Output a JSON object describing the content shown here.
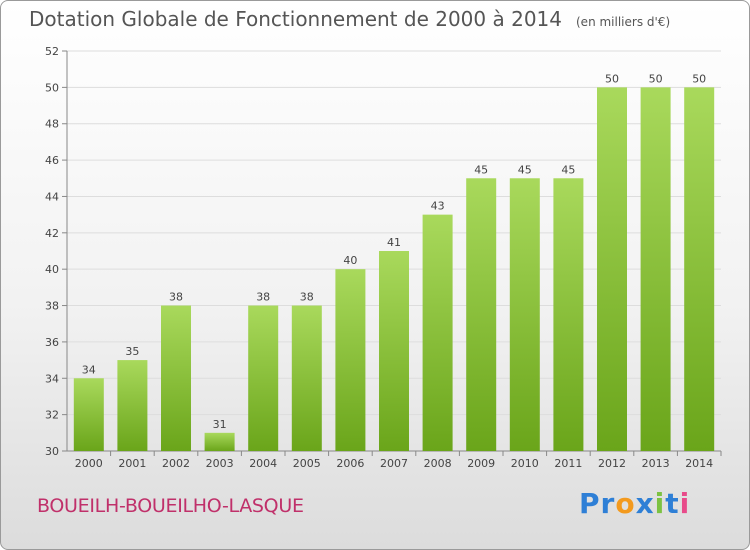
{
  "header": {
    "title": "Dotation Globale de Fonctionnement de 2000 à 2014",
    "unit": "(en milliers d'€)"
  },
  "footer": {
    "commune": "BOUEILH-BOUEILHO-LASQUE",
    "logo_text": "Proxiti",
    "logo_letters": [
      {
        "char": "P",
        "color": "#2e7fd6"
      },
      {
        "char": "r",
        "color": "#2e7fd6"
      },
      {
        "char": "o",
        "color": "#f39a1e"
      },
      {
        "char": "x",
        "color": "#2e7fd6"
      },
      {
        "char": "i",
        "color": "#7cc242"
      },
      {
        "char": "t",
        "color": "#2e7fd6"
      },
      {
        "char": "i",
        "color": "#e84b8a"
      }
    ]
  },
  "colors": {
    "bar_light": "#a9d95c",
    "bar_dark": "#6aa51a",
    "axis": "#888888",
    "grid": "#dddddd",
    "text": "#444444"
  },
  "chart_data": {
    "type": "bar",
    "title": "Dotation Globale de Fonctionnement de 2000 à 2014",
    "categories": [
      "2000",
      "2001",
      "2002",
      "2003",
      "2004",
      "2005",
      "2006",
      "2007",
      "2008",
      "2009",
      "2010",
      "2011",
      "2012",
      "2013",
      "2014"
    ],
    "values": [
      34,
      35,
      38,
      31,
      38,
      38,
      40,
      41,
      43,
      45,
      45,
      45,
      50,
      50,
      50
    ],
    "ylim": [
      30,
      52
    ],
    "yticks": [
      30,
      32,
      34,
      36,
      38,
      40,
      42,
      44,
      46,
      48,
      50,
      52
    ],
    "grid": true,
    "xlabel": "",
    "ylabel": ""
  }
}
